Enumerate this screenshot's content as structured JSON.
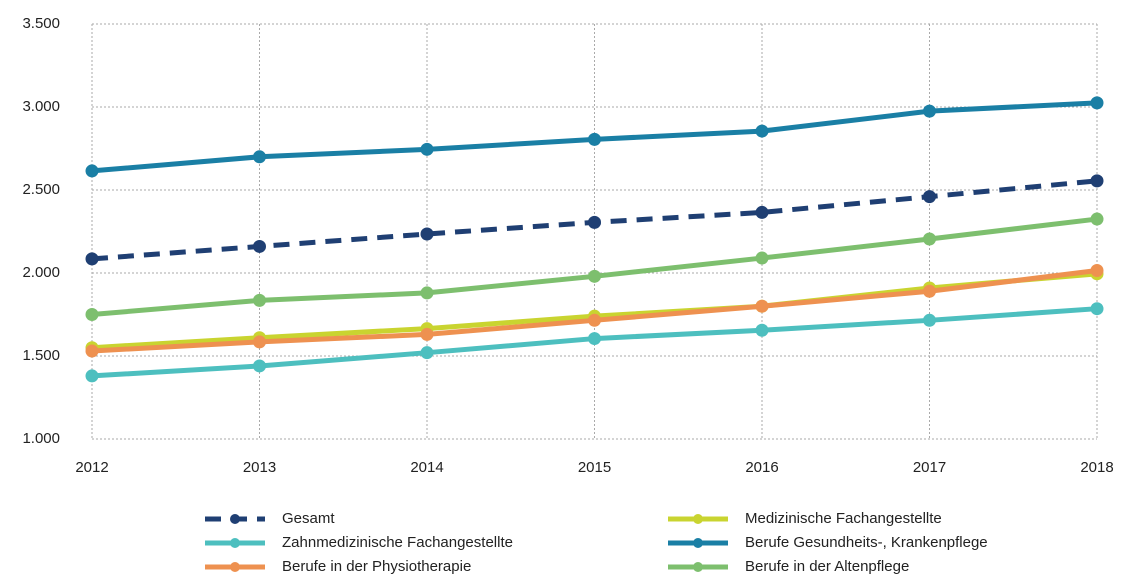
{
  "chart_data": {
    "type": "line",
    "categories": [
      "2012",
      "2013",
      "2014",
      "2015",
      "2016",
      "2017",
      "2018"
    ],
    "series": [
      {
        "name": "Gesamt",
        "color": "#1f3f73",
        "line_style": "dashed",
        "values": [
          2085,
          2160,
          2235,
          2305,
          2365,
          2460,
          2555
        ]
      },
      {
        "name": "Medizinische Fachangestellte",
        "color": "#c9d430",
        "values": [
          1550,
          1610,
          1665,
          1740,
          1800,
          1910,
          1995
        ]
      },
      {
        "name": "Zahnmedizinische Fachangestellte",
        "color": "#4dbfbf",
        "values": [
          1380,
          1440,
          1520,
          1605,
          1655,
          1715,
          1785
        ]
      },
      {
        "name": "Berufe Gesundheits-, Krankenpflege",
        "color": "#1a7fa5",
        "values": [
          2615,
          2700,
          2745,
          2805,
          2855,
          2975,
          3025
        ]
      },
      {
        "name": "Berufe in der Physiotherapie",
        "color": "#ee9150",
        "values": [
          1530,
          1585,
          1630,
          1715,
          1800,
          1890,
          2015
        ]
      },
      {
        "name": "Berufe in der Altenpflege",
        "color": "#7dbf6e",
        "values": [
          1750,
          1835,
          1880,
          1980,
          2090,
          2205,
          2325
        ]
      }
    ],
    "ylim": [
      1000,
      3500
    ],
    "yticks": [
      {
        "value": 1000,
        "label": "1.000"
      },
      {
        "value": 1500,
        "label": "1.500"
      },
      {
        "value": 2000,
        "label": "2.000"
      },
      {
        "value": 2500,
        "label": "2.500"
      },
      {
        "value": 3000,
        "label": "3.000"
      },
      {
        "value": 3500,
        "label": "3.500"
      }
    ],
    "grid": true,
    "legend": "bottom"
  }
}
